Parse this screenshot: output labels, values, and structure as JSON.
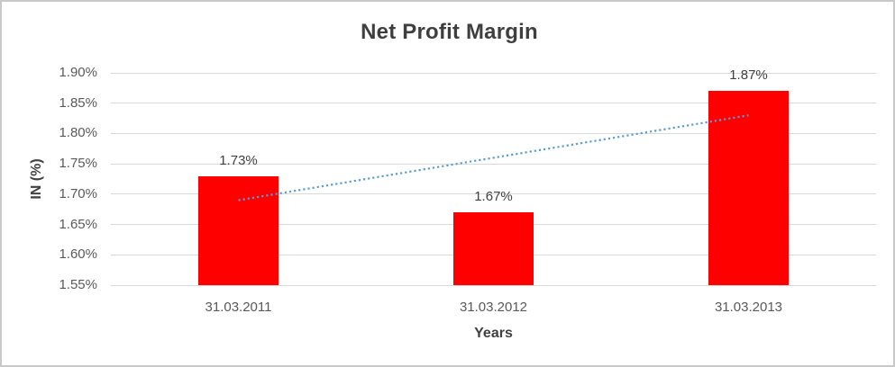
{
  "chart_data": {
    "type": "bar",
    "title": "Net Profit Margin",
    "xlabel": "Years",
    "ylabel": "IN (%)",
    "categories": [
      "31.03.2011",
      "31.03.2012",
      "31.03.2013"
    ],
    "values": [
      1.73,
      1.67,
      1.87
    ],
    "data_labels": [
      "1.73%",
      "1.67%",
      "1.87%"
    ],
    "ylim": [
      1.55,
      1.9
    ],
    "ytick_step": 0.05,
    "ytick_labels": [
      "1.55%",
      "1.60%",
      "1.65%",
      "1.70%",
      "1.75%",
      "1.80%",
      "1.85%",
      "1.90%"
    ],
    "grid": true,
    "legend": "none",
    "bar_color": "#ff0000",
    "trendline": {
      "type": "linear",
      "style": "dotted",
      "color": "#5b9bd5",
      "start_value": 1.69,
      "end_value": 1.83
    },
    "colors": {
      "title_text": "#3f3f3f",
      "axis_title_text": "#404040",
      "tick_text": "#595959",
      "data_label_text": "#404040",
      "gridline": "#d9d9d9",
      "frame_border": "#c9c9c9",
      "background": "#ffffff"
    }
  }
}
